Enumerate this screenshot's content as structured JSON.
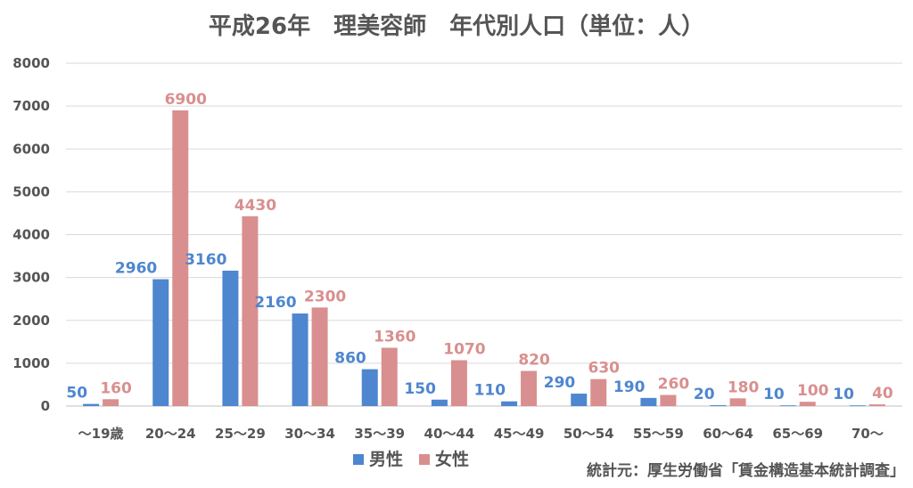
{
  "chart_data": {
    "type": "bar",
    "title": "平成26年　理美容師　年代別人口（単位：人）",
    "categories": [
      "～19歳",
      "20～24",
      "25～29",
      "30～34",
      "35～39",
      "40～44",
      "45～49",
      "50～54",
      "55～59",
      "60～64",
      "65～69",
      "70～"
    ],
    "series": [
      {
        "name": "男性",
        "color": "#4e86cf",
        "values": [
          50,
          2960,
          3160,
          2160,
          860,
          150,
          110,
          290,
          190,
          20,
          10,
          10
        ]
      },
      {
        "name": "女性",
        "color": "#d98f8f",
        "values": [
          160,
          6900,
          4430,
          2300,
          1360,
          1070,
          820,
          630,
          260,
          180,
          100,
          40
        ]
      }
    ],
    "ylim": [
      0,
      8000
    ],
    "yticks": [
      0,
      1000,
      2000,
      3000,
      4000,
      5000,
      6000,
      7000,
      8000
    ],
    "grid": true,
    "legend": "bottom",
    "source_note": "統計元：厚生労働省「賃金構造基本統計調査」"
  }
}
